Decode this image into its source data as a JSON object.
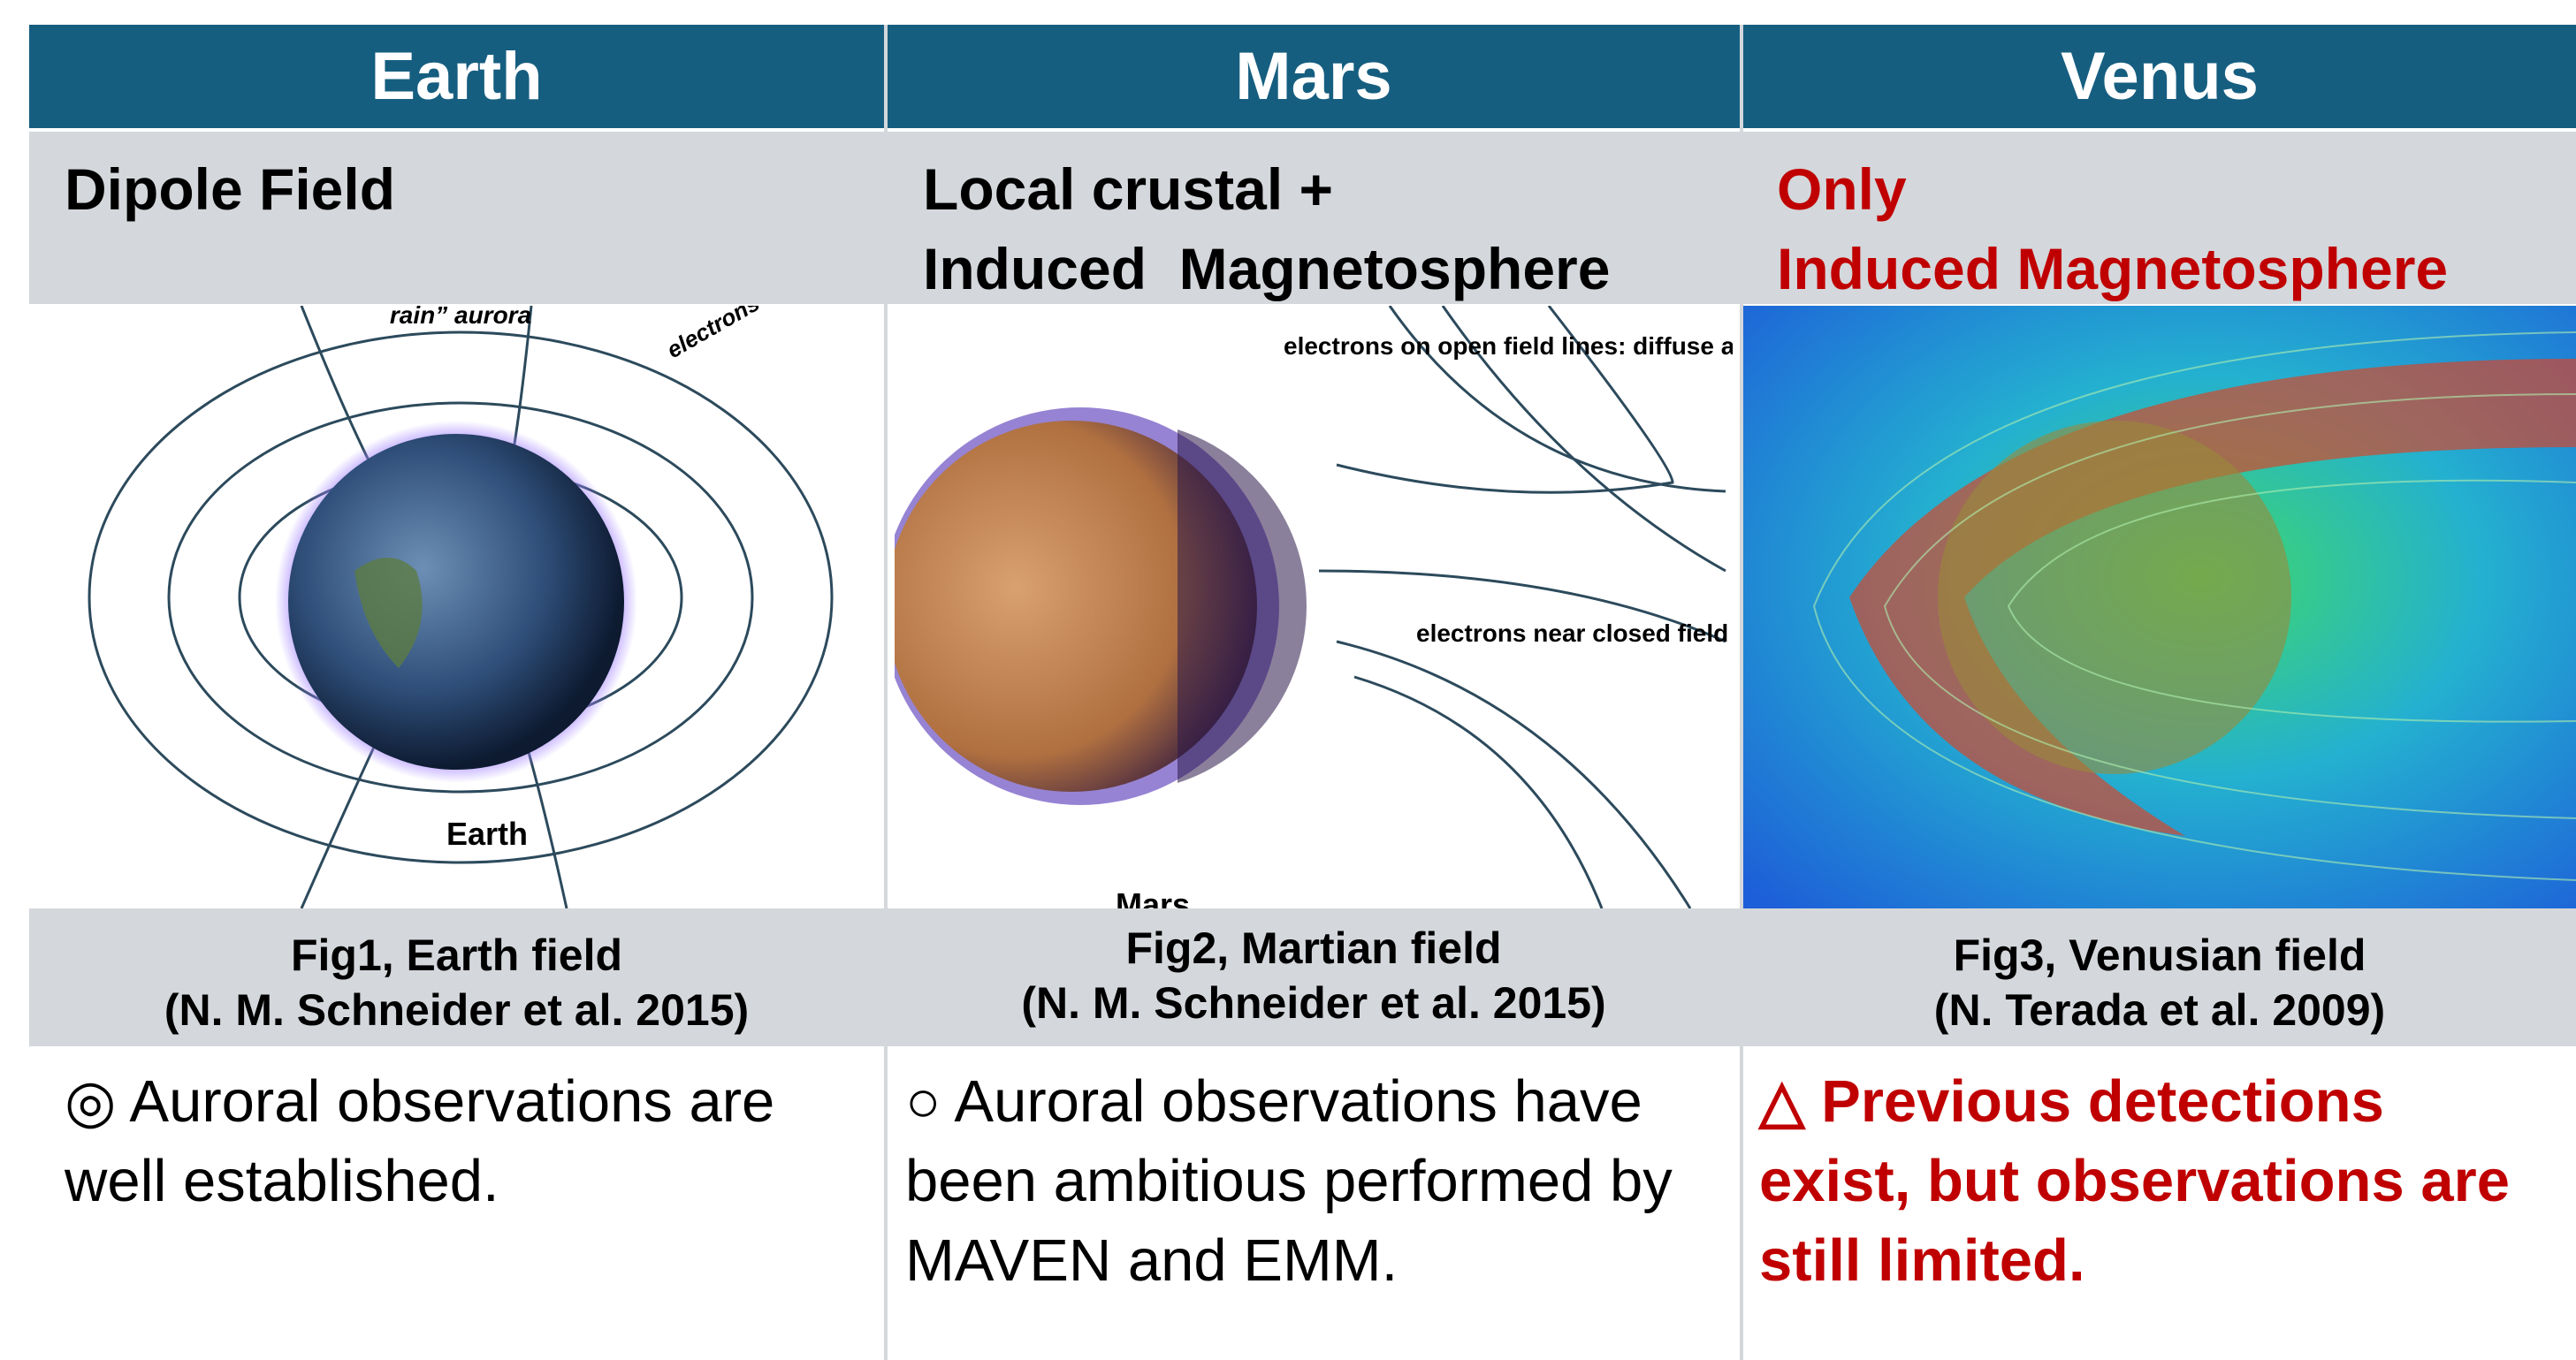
{
  "table": {
    "columns": [
      {
        "header": "Earth",
        "field": [
          "Dipole Field"
        ],
        "figure_labels": [
          "rain” aurora",
          "electrons on closed field lines: discrete aurora",
          "Earth"
        ],
        "caption": [
          "Fig1, Earth field",
          "(N. M. Schneider et al. 2015)"
        ],
        "observation": "◎ Auroral observations are well established."
      },
      {
        "header": "Mars",
        "field": [
          "Local crustal +",
          "Induced  Magnetosphere"
        ],
        "figure_labels": [
          "electrons on open field lines: diffuse aurora",
          "electrons near closed field lines: discrete aurora",
          "Mars"
        ],
        "caption": [
          "Fig2, Martian field",
          "(N. M. Schneider et al. 2015)"
        ],
        "observation": "○ Auroral observations have been ambitious performed by MAVEN and EMM."
      },
      {
        "header": "Venus",
        "field": [
          "Only",
          "Induced Magnetosphere"
        ],
        "figure_labels": [],
        "caption": [
          "Fig3, Venusian field",
          "(N. Terada et al. 2009)"
        ],
        "observation": "△ Previous detections exist, but observations are still limited."
      }
    ]
  }
}
